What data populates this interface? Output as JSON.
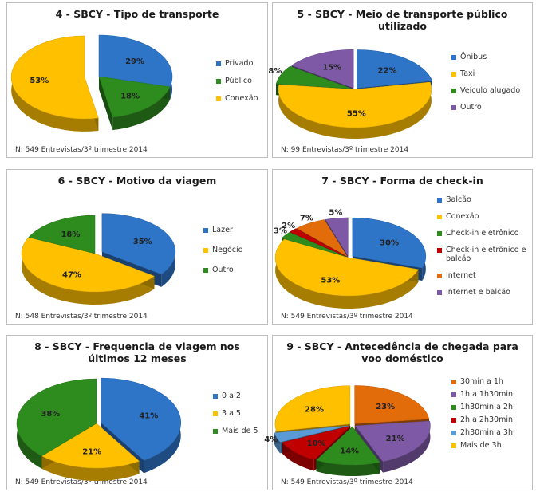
{
  "colors": {
    "blue": "#2E75C8",
    "green": "#2E8B1E",
    "yellow": "#FFC000",
    "purple": "#7E5AA6",
    "red": "#C00000",
    "orange": "#E36C0A",
    "lightblue": "#5B9BD5"
  },
  "chart_data": [
    {
      "type": "pie",
      "title": "4 - SBCY - Tipo de transporte",
      "categories": [
        "Privado",
        "Público",
        "Conexão"
      ],
      "values": [
        29,
        18,
        53
      ],
      "labels": [
        "29%",
        "18%",
        "53%"
      ],
      "colors": [
        "blue",
        "green",
        "yellow"
      ],
      "footnote": "N: 549 Entrevistas/3º trimestre 2014",
      "legend_position": "right"
    },
    {
      "type": "pie",
      "title": "5 - SBCY - Meio de transporte público utilizado",
      "categories": [
        "Ônibus",
        "Taxi",
        "Veículo alugado",
        "Outro"
      ],
      "values": [
        22,
        55,
        8,
        15
      ],
      "labels": [
        "22%",
        "55%",
        "8%",
        "15%"
      ],
      "colors": [
        "blue",
        "yellow",
        "green",
        "purple"
      ],
      "footnote": "N: 99 Entrevistas/3º trimestre 2014",
      "legend_position": "right"
    },
    {
      "type": "pie",
      "title": "6 - SBCY - Motivo da viagem",
      "categories": [
        "Lazer",
        "Negócio",
        "Outro"
      ],
      "values": [
        35,
        47,
        18
      ],
      "labels": [
        "35%",
        "47%",
        "18%"
      ],
      "colors": [
        "blue",
        "yellow",
        "green"
      ],
      "footnote": "N: 548 Entrevistas/3º trimestre 2014",
      "legend_position": "right"
    },
    {
      "type": "pie",
      "title": "7 - SBCY - Forma de check-in",
      "categories": [
        "Balcão",
        "Conexão",
        "Check-in eletrônico",
        "Check-in eletrônico e balcão",
        "Internet",
        "Internet e balcão"
      ],
      "values": [
        30,
        53,
        3,
        2,
        7,
        5
      ],
      "labels": [
        "30%",
        "53%",
        "3%",
        "2%",
        "7%",
        "5%"
      ],
      "colors": [
        "blue",
        "yellow",
        "green",
        "red",
        "orange",
        "purple"
      ],
      "footnote": "N: 549 Entrevistas/3º trimestre 2014",
      "legend_position": "right"
    },
    {
      "type": "pie",
      "title": "8 - SBCY - Frequencia de viagem nos últimos 12 meses",
      "categories": [
        "0 a 2",
        "3 a 5",
        "Mais de 5"
      ],
      "values": [
        41,
        21,
        38
      ],
      "labels": [
        "41%",
        "21%",
        "38%"
      ],
      "colors": [
        "blue",
        "yellow",
        "green"
      ],
      "footnote": "N: 549 Entrevistas/3º trimestre 2014",
      "legend_position": "right"
    },
    {
      "type": "pie",
      "title": "9 - SBCY - Antecedência de chegada para voo doméstico",
      "categories": [
        "30min a 1h",
        "1h a 1h30min",
        "1h30min a 2h",
        "2h a 2h30min",
        "2h30min a 3h",
        "Mais de 3h"
      ],
      "values": [
        23,
        21,
        14,
        10,
        4,
        28
      ],
      "labels": [
        "23%",
        "21%",
        "14%",
        "10%",
        "4%",
        "28%"
      ],
      "colors": [
        "orange",
        "purple",
        "green",
        "red",
        "lightblue",
        "yellow"
      ],
      "footnote": "N: 549 Entrevistas/3º trimestre 2014",
      "legend_position": "right"
    }
  ]
}
